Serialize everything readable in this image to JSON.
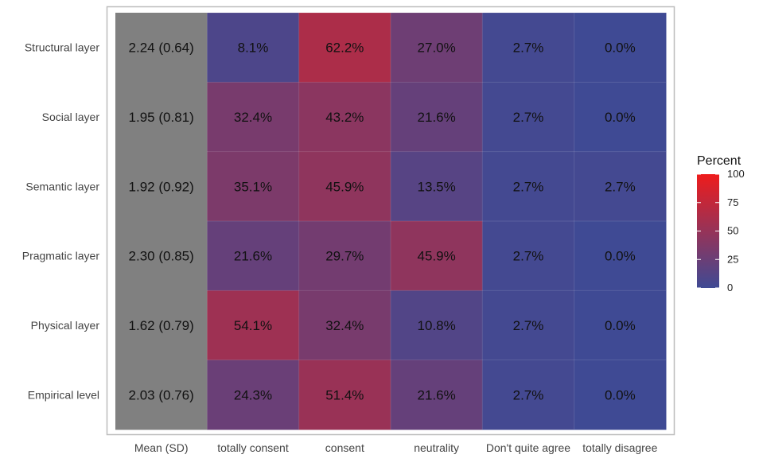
{
  "chart_data": {
    "type": "heatmap",
    "rows": [
      "Structural layer",
      "Social layer",
      "Semantic layer",
      "Pragmatic layer",
      "Physical layer",
      "Empirical level"
    ],
    "columns": [
      "Mean (SD)",
      "totally consent",
      "consent",
      "neutrality",
      "Don't quite agree",
      "totally disagree"
    ],
    "mean_sd": [
      "2.24 (0.64)",
      "1.95 (0.81)",
      "1.92 (0.92)",
      "2.30 (0.85)",
      "1.62 (0.79)",
      "2.03 (0.76)"
    ],
    "values": [
      [
        8.1,
        62.2,
        27.0,
        2.7,
        0.0
      ],
      [
        32.4,
        43.2,
        21.6,
        2.7,
        0.0
      ],
      [
        35.1,
        45.9,
        13.5,
        2.7,
        2.7
      ],
      [
        21.6,
        29.7,
        45.9,
        2.7,
        0.0
      ],
      [
        54.1,
        32.4,
        10.8,
        2.7,
        0.0
      ],
      [
        24.3,
        51.4,
        21.6,
        2.7,
        0.0
      ]
    ],
    "value_labels": [
      [
        "8.1%",
        "62.2%",
        "27.0%",
        "2.7%",
        "0.0%"
      ],
      [
        "32.4%",
        "43.2%",
        "21.6%",
        "2.7%",
        "0.0%"
      ],
      [
        "35.1%",
        "45.9%",
        "13.5%",
        "2.7%",
        "2.7%"
      ],
      [
        "21.6%",
        "29.7%",
        "45.9%",
        "2.7%",
        "0.0%"
      ],
      [
        "54.1%",
        "32.4%",
        "10.8%",
        "2.7%",
        "0.0%"
      ],
      [
        "24.3%",
        "51.4%",
        "21.6%",
        "2.7%",
        "0.0%"
      ]
    ],
    "mean_column_color": "#808080",
    "legend": {
      "title": "Percent",
      "range": [
        0,
        100
      ],
      "ticks": [
        0,
        25,
        50,
        75,
        100
      ],
      "tick_labels": [
        "0",
        "25",
        "50",
        "75",
        "100"
      ],
      "low_color": "#3f4a94",
      "high_color": "#ee1c1c",
      "placement": "right"
    }
  }
}
